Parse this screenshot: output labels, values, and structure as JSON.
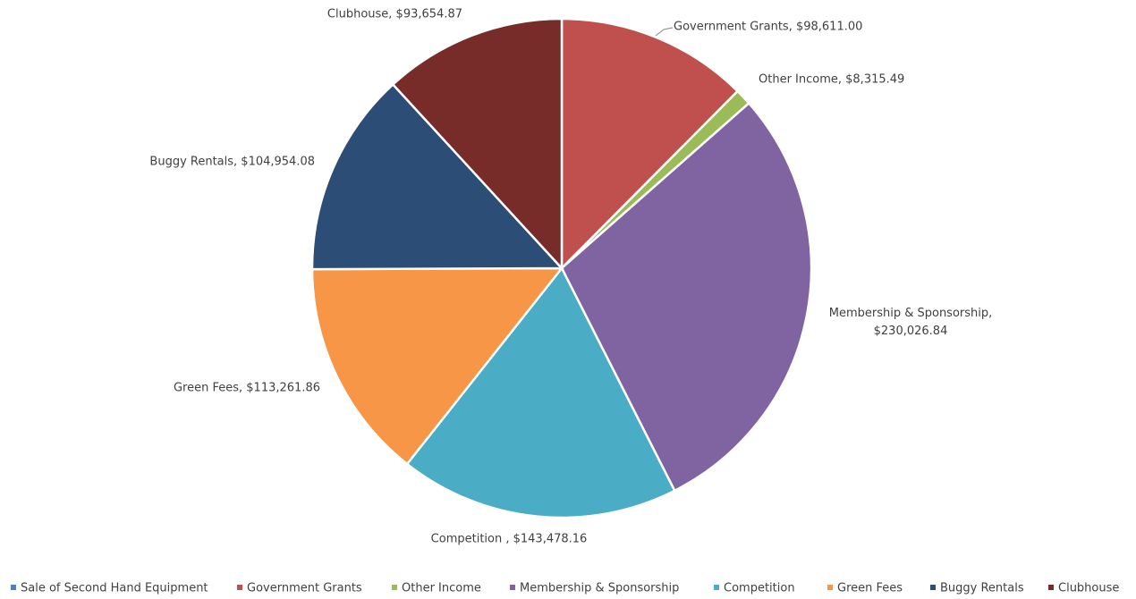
{
  "chart_data": {
    "type": "pie",
    "categories": [
      "Sale of Second Hand Equipment",
      "Government Grants",
      "Other Income",
      "Membership & Sponsorship",
      "Competition",
      "Green Fees",
      "Buggy Rentals",
      "Clubhouse"
    ],
    "values": [
      0,
      98611.0,
      8315.49,
      230026.84,
      143478.16,
      113261.86,
      104954.08,
      93654.87
    ],
    "value_labels": [
      null,
      "Government Grants, $98,611.00",
      "Other Income, $8,315.49",
      "Membership & Sponsorship, $230,026.84",
      "Competition , $143,478.16",
      "Green Fees, $113,261.86",
      "Buggy Rentals, $104,954.08",
      "Clubhouse, $93,654.87"
    ],
    "colors": [
      "#4f81bd",
      "#c0504d",
      "#9bbb59",
      "#8064a2",
      "#4bacc6",
      "#f79646",
      "#2c4d75",
      "#772c2a"
    ],
    "legend": "bottom"
  }
}
